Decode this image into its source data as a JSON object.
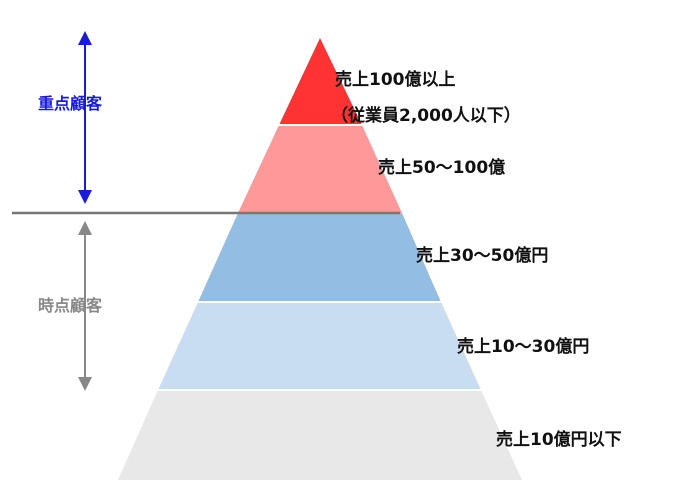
{
  "groups": {
    "key": {
      "label": "重点顧客",
      "color": "#1a1adb"
    },
    "current": {
      "label": "時点顧客",
      "color": "#888888"
    }
  },
  "tiers": [
    {
      "label": "売上100億以上",
      "sublabel": "（従業員2,000人以下）",
      "color": "#ff3333"
    },
    {
      "label": "売上50〜100億",
      "color": "#ff9999"
    },
    {
      "label": "売上30〜50億円",
      "color": "#94bde3"
    },
    {
      "label": "売上10〜30億円",
      "color": "#c9ddf1"
    },
    {
      "label": "売上10億円以下",
      "color": "#e8e8e8"
    }
  ],
  "divider_color": "#777777"
}
